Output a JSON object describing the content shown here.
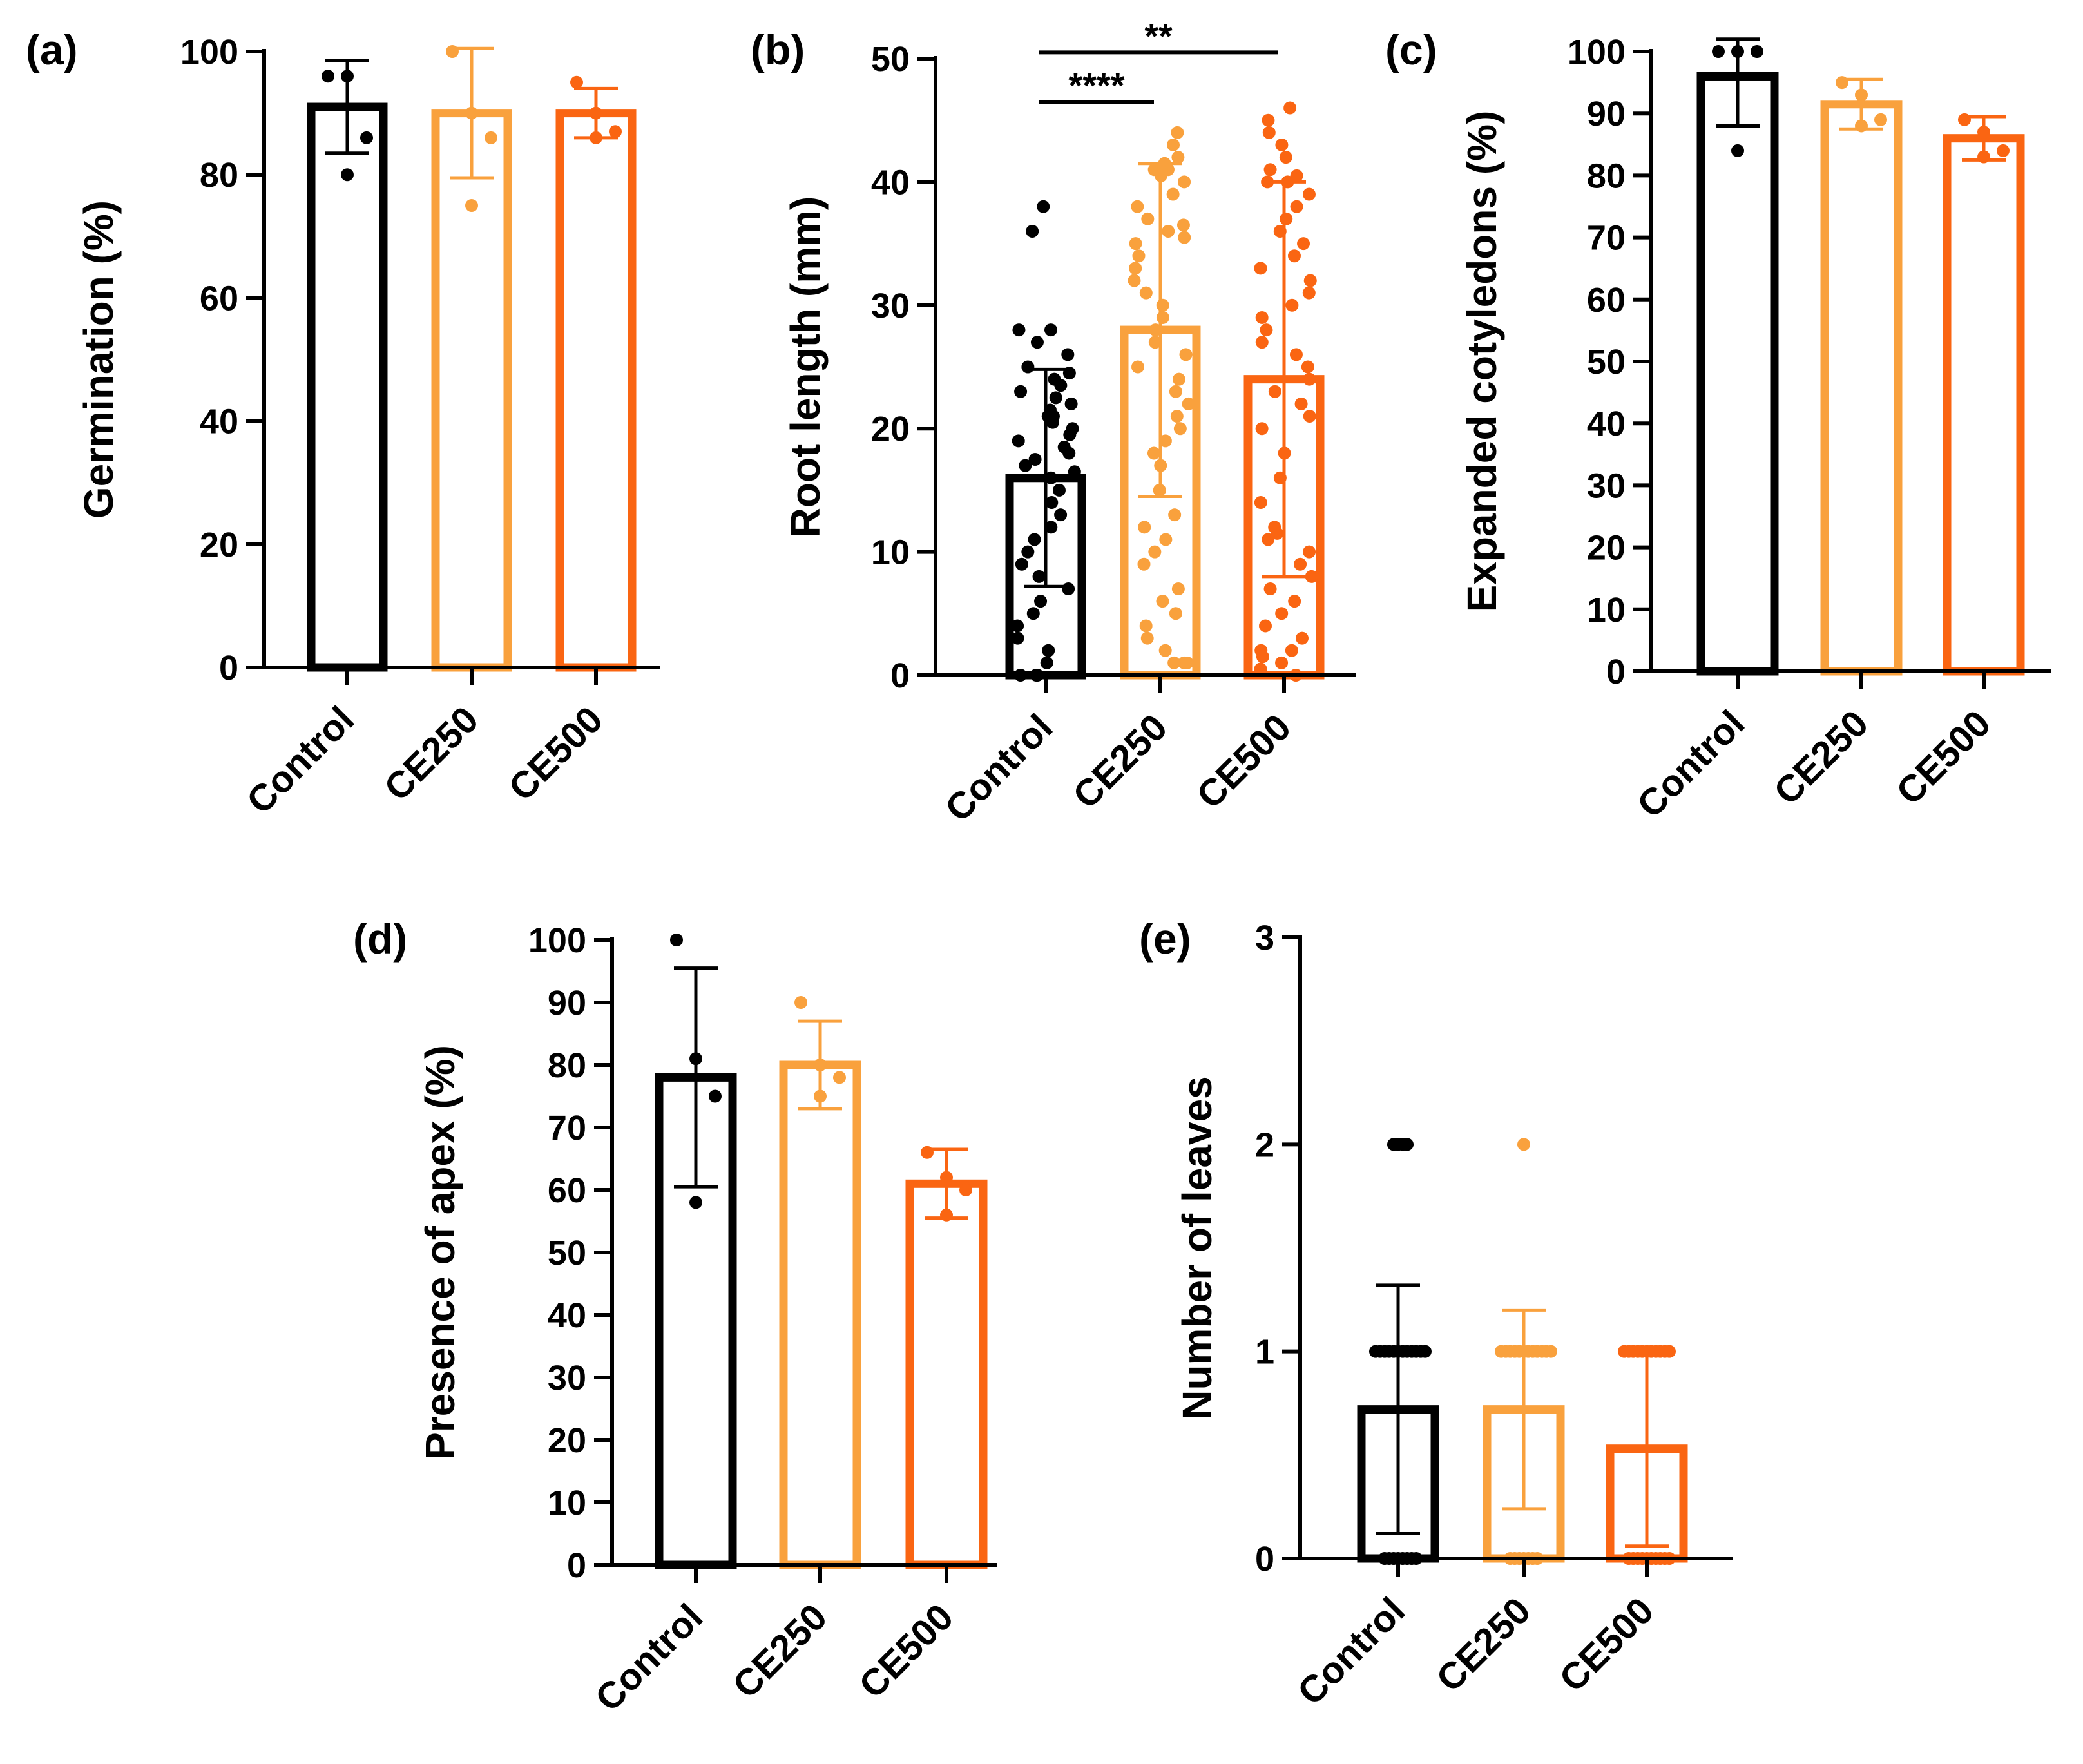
{
  "colors": {
    "control": "#000000",
    "ce250": "#f9a13d",
    "ce500": "#fa6512"
  },
  "chart_data": [
    {
      "id": "a",
      "panel_label": "(a)",
      "type": "bar",
      "ylabel": "Germination (%)",
      "ylim": [
        0,
        100
      ],
      "yticks": [
        0,
        20,
        40,
        60,
        80,
        100
      ],
      "categories": [
        "Control",
        "CE250",
        "CE500"
      ],
      "bars": [
        {
          "category": "Control",
          "mean": 91,
          "sd": 7.5,
          "points": [
            96,
            96,
            86,
            80
          ]
        },
        {
          "category": "CE250",
          "mean": 90,
          "sd": 10.5,
          "points": [
            100,
            90,
            86,
            75
          ]
        },
        {
          "category": "CE500",
          "mean": 90,
          "sd": 4,
          "points": [
            95,
            90,
            87,
            86
          ]
        }
      ]
    },
    {
      "id": "b",
      "panel_label": "(b)",
      "type": "bar",
      "ylabel": "Root length (mm)",
      "ylim": [
        0,
        50
      ],
      "yticks": [
        0,
        10,
        20,
        30,
        40,
        50
      ],
      "categories": [
        "Control",
        "CE250",
        "CE500"
      ],
      "bars": [
        {
          "category": "Control",
          "mean": 16,
          "sd": 8.8,
          "points": [
            38,
            36,
            28,
            28,
            27,
            26,
            25,
            24.5,
            24,
            23.5,
            23,
            22.5,
            22,
            21.5,
            21,
            21,
            20.5,
            20,
            19.5,
            19,
            18.5,
            18,
            17.5,
            17,
            16.5,
            16,
            15,
            14,
            13,
            12,
            11,
            10,
            9,
            8,
            7,
            6,
            5,
            4,
            3,
            2,
            1,
            0,
            0,
            0
          ]
        },
        {
          "category": "CE250",
          "mean": 28,
          "sd": 13.5,
          "points": [
            44,
            43,
            42,
            41.5,
            41,
            41,
            40.5,
            40,
            39,
            38,
            37,
            36.5,
            36,
            35.5,
            35,
            34,
            33,
            32,
            31,
            30,
            29,
            28,
            27,
            26,
            25,
            24,
            23,
            22,
            21,
            20,
            19,
            18,
            17,
            15,
            13,
            12,
            11,
            10,
            9,
            7,
            6,
            5,
            4,
            3,
            2,
            1,
            1,
            1
          ]
        },
        {
          "category": "CE500",
          "mean": 24,
          "sd": 16,
          "points": [
            46,
            45,
            44,
            43,
            42,
            41,
            40.5,
            40,
            40,
            39,
            38,
            37,
            36,
            35,
            34,
            33,
            32,
            31,
            30,
            29,
            28,
            27,
            26,
            25,
            24,
            23,
            22,
            21,
            20,
            18,
            16,
            14,
            12,
            11.5,
            11,
            10,
            9,
            8,
            7,
            6,
            5,
            4,
            3,
            2,
            2,
            1.5,
            1,
            0.5,
            0
          ]
        }
      ],
      "significance": [
        {
          "label": "****",
          "from": "Control",
          "to": "CE250",
          "y": 46.5
        },
        {
          "label": "**",
          "from": "Control",
          "to": "CE500",
          "y": 50.5
        }
      ]
    },
    {
      "id": "c",
      "panel_label": "(c)",
      "type": "bar",
      "ylabel": "Expanded cotyledons (%)",
      "ylim": [
        0,
        100
      ],
      "yticks": [
        0,
        10,
        20,
        30,
        40,
        50,
        60,
        70,
        80,
        90,
        100
      ],
      "categories": [
        "Control",
        "CE250",
        "CE500"
      ],
      "bars": [
        {
          "category": "Control",
          "mean": 96,
          "sd": 8,
          "points": [
            100,
            100,
            100,
            84
          ]
        },
        {
          "category": "CE250",
          "mean": 91.5,
          "sd": 4,
          "points": [
            95,
            93,
            89,
            88
          ]
        },
        {
          "category": "CE500",
          "mean": 86,
          "sd": 3.5,
          "points": [
            89,
            87,
            84,
            83
          ]
        }
      ]
    },
    {
      "id": "d",
      "panel_label": "(d)",
      "type": "bar",
      "ylabel": "Presence of apex (%)",
      "ylim": [
        0,
        100
      ],
      "yticks": [
        0,
        10,
        20,
        30,
        40,
        50,
        60,
        70,
        80,
        90,
        100
      ],
      "categories": [
        "Control",
        "CE250",
        "CE500"
      ],
      "bars": [
        {
          "category": "Control",
          "mean": 78,
          "sd": 17.5,
          "points": [
            100,
            81,
            75,
            58
          ]
        },
        {
          "category": "CE250",
          "mean": 80,
          "sd": 7,
          "points": [
            90,
            80,
            78,
            75
          ]
        },
        {
          "category": "CE500",
          "mean": 61,
          "sd": 5.5,
          "points": [
            66,
            62,
            60,
            56
          ]
        }
      ]
    },
    {
      "id": "e",
      "panel_label": "(e)",
      "type": "bar",
      "ylabel": "Number of leaves",
      "ylim": [
        0,
        3
      ],
      "yticks": [
        0,
        1,
        2,
        3
      ],
      "categories": [
        "Control",
        "CE250",
        "CE500"
      ],
      "bars": [
        {
          "category": "Control",
          "mean": 0.72,
          "sd": 0.6,
          "points": [
            2,
            2,
            2,
            2,
            1,
            1,
            1,
            1,
            1,
            1,
            1,
            1,
            1,
            1,
            1,
            1,
            0,
            0,
            0,
            0,
            0,
            0,
            0,
            0
          ]
        },
        {
          "category": "CE250",
          "mean": 0.72,
          "sd": 0.48,
          "points": [
            2,
            1,
            1,
            1,
            1,
            1,
            1,
            1,
            1,
            1,
            1,
            1,
            1,
            0,
            0,
            0,
            0,
            0,
            0,
            0
          ]
        },
        {
          "category": "CE500",
          "mean": 0.53,
          "sd": 0.47,
          "points": [
            1,
            1,
            1,
            1,
            1,
            1,
            1,
            1,
            1,
            1,
            1,
            0,
            0,
            0,
            0,
            0,
            0,
            0,
            0,
            0,
            0
          ]
        }
      ]
    }
  ]
}
